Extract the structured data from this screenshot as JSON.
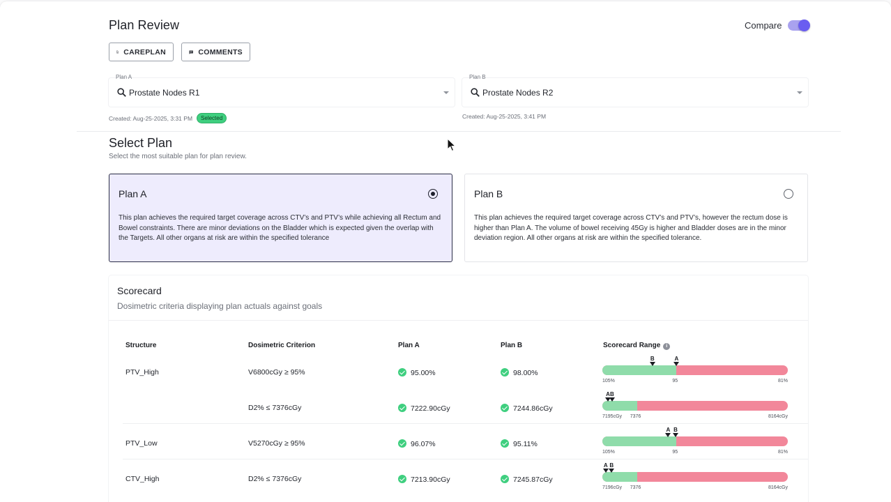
{
  "header": {
    "title": "Plan Review",
    "compare_label": "Compare",
    "compare_on": true,
    "buttons": {
      "careplan": "CAREPLAN",
      "comments": "COMMENTS"
    }
  },
  "plans": {
    "a": {
      "label": "Plan A",
      "value": "Prostate Nodes R1",
      "created": "Created: Aug-25-2025, 3:31 PM",
      "badge": "Selected"
    },
    "b": {
      "label": "Plan B",
      "value": "Prostate Nodes R2",
      "created": "Created: Aug-25-2025, 3:41 PM"
    }
  },
  "select_plan": {
    "title": "Select Plan",
    "subtitle": "Select the most suitable plan for plan review.",
    "selected": "Plan A",
    "cards": [
      {
        "title": "Plan A",
        "description": "This plan achieves the required target coverage across CTV’s and PTV’s while achieving all Rectum and Bowel constraints. There are minor deviations on the Bladder which is expected given the overlap with the Targets. All other organs at risk are within the specified tolerance"
      },
      {
        "title": "Plan B",
        "description": "This plan achieves the required target coverage across CTV’s and PTV’s, however the rectum dose is higher than Plan A. The volume of bowel receiving 45Gy is higher and Bladder doses are in the minor deviation region. All other organs at risk are within the specified tolerance."
      }
    ]
  },
  "scorecard": {
    "title": "Scorecard",
    "subtitle": "Dosimetric criteria displaying plan actuals against goals",
    "columns": [
      "Structure",
      "Dosimetric Criterion",
      "Plan A",
      "Plan B",
      "Scorecard Range"
    ],
    "info_icon": "info-icon",
    "colors": {
      "pass": "#8fdcaa",
      "fail": "#f2879a",
      "check": "#3fcf7f"
    },
    "rows": [
      {
        "structure": "PTV_High",
        "criterion": "V6800cGy ≥ 95%",
        "plan_a": "95.00%",
        "plan_b": "98.00%",
        "range": {
          "ticks": [
            "105%",
            "95",
            "81%"
          ],
          "pass_fraction": 0.4,
          "markers": [
            {
              "label": "B",
              "fraction": 0.27
            },
            {
              "label": "A",
              "fraction": 0.4
            }
          ]
        }
      },
      {
        "structure": "",
        "criterion": "D2% ≤ 7376cGy",
        "plan_a": "7222.90cGy",
        "plan_b": "7244.86cGy",
        "range": {
          "ticks": [
            "7195cGy",
            "7376",
            "8164cGy"
          ],
          "pass_fraction": 0.187,
          "markers": [
            {
              "label": "A",
              "fraction": 0.03
            },
            {
              "label": "B",
              "fraction": 0.052
            }
          ]
        }
      },
      {
        "structure": "PTV_Low",
        "criterion": "V5270cGy ≥ 95%",
        "plan_a": "96.07%",
        "plan_b": "95.11%",
        "range": {
          "ticks": [
            "105%",
            "95",
            "81%"
          ],
          "pass_fraction": 0.4,
          "markers": [
            {
              "label": "A",
              "fraction": 0.355
            },
            {
              "label": "B",
              "fraction": 0.395
            }
          ]
        }
      },
      {
        "structure": "CTV_High",
        "criterion": "D2% ≤ 7376cGy",
        "plan_a": "7213.90cGy",
        "plan_b": "7245.87cGy",
        "range": {
          "ticks": [
            "7196cGy",
            "7376",
            "8164cGy"
          ],
          "pass_fraction": 0.187,
          "markers": [
            {
              "label": "A",
              "fraction": 0.018
            },
            {
              "label": "B",
              "fraction": 0.05
            }
          ]
        }
      }
    ]
  }
}
